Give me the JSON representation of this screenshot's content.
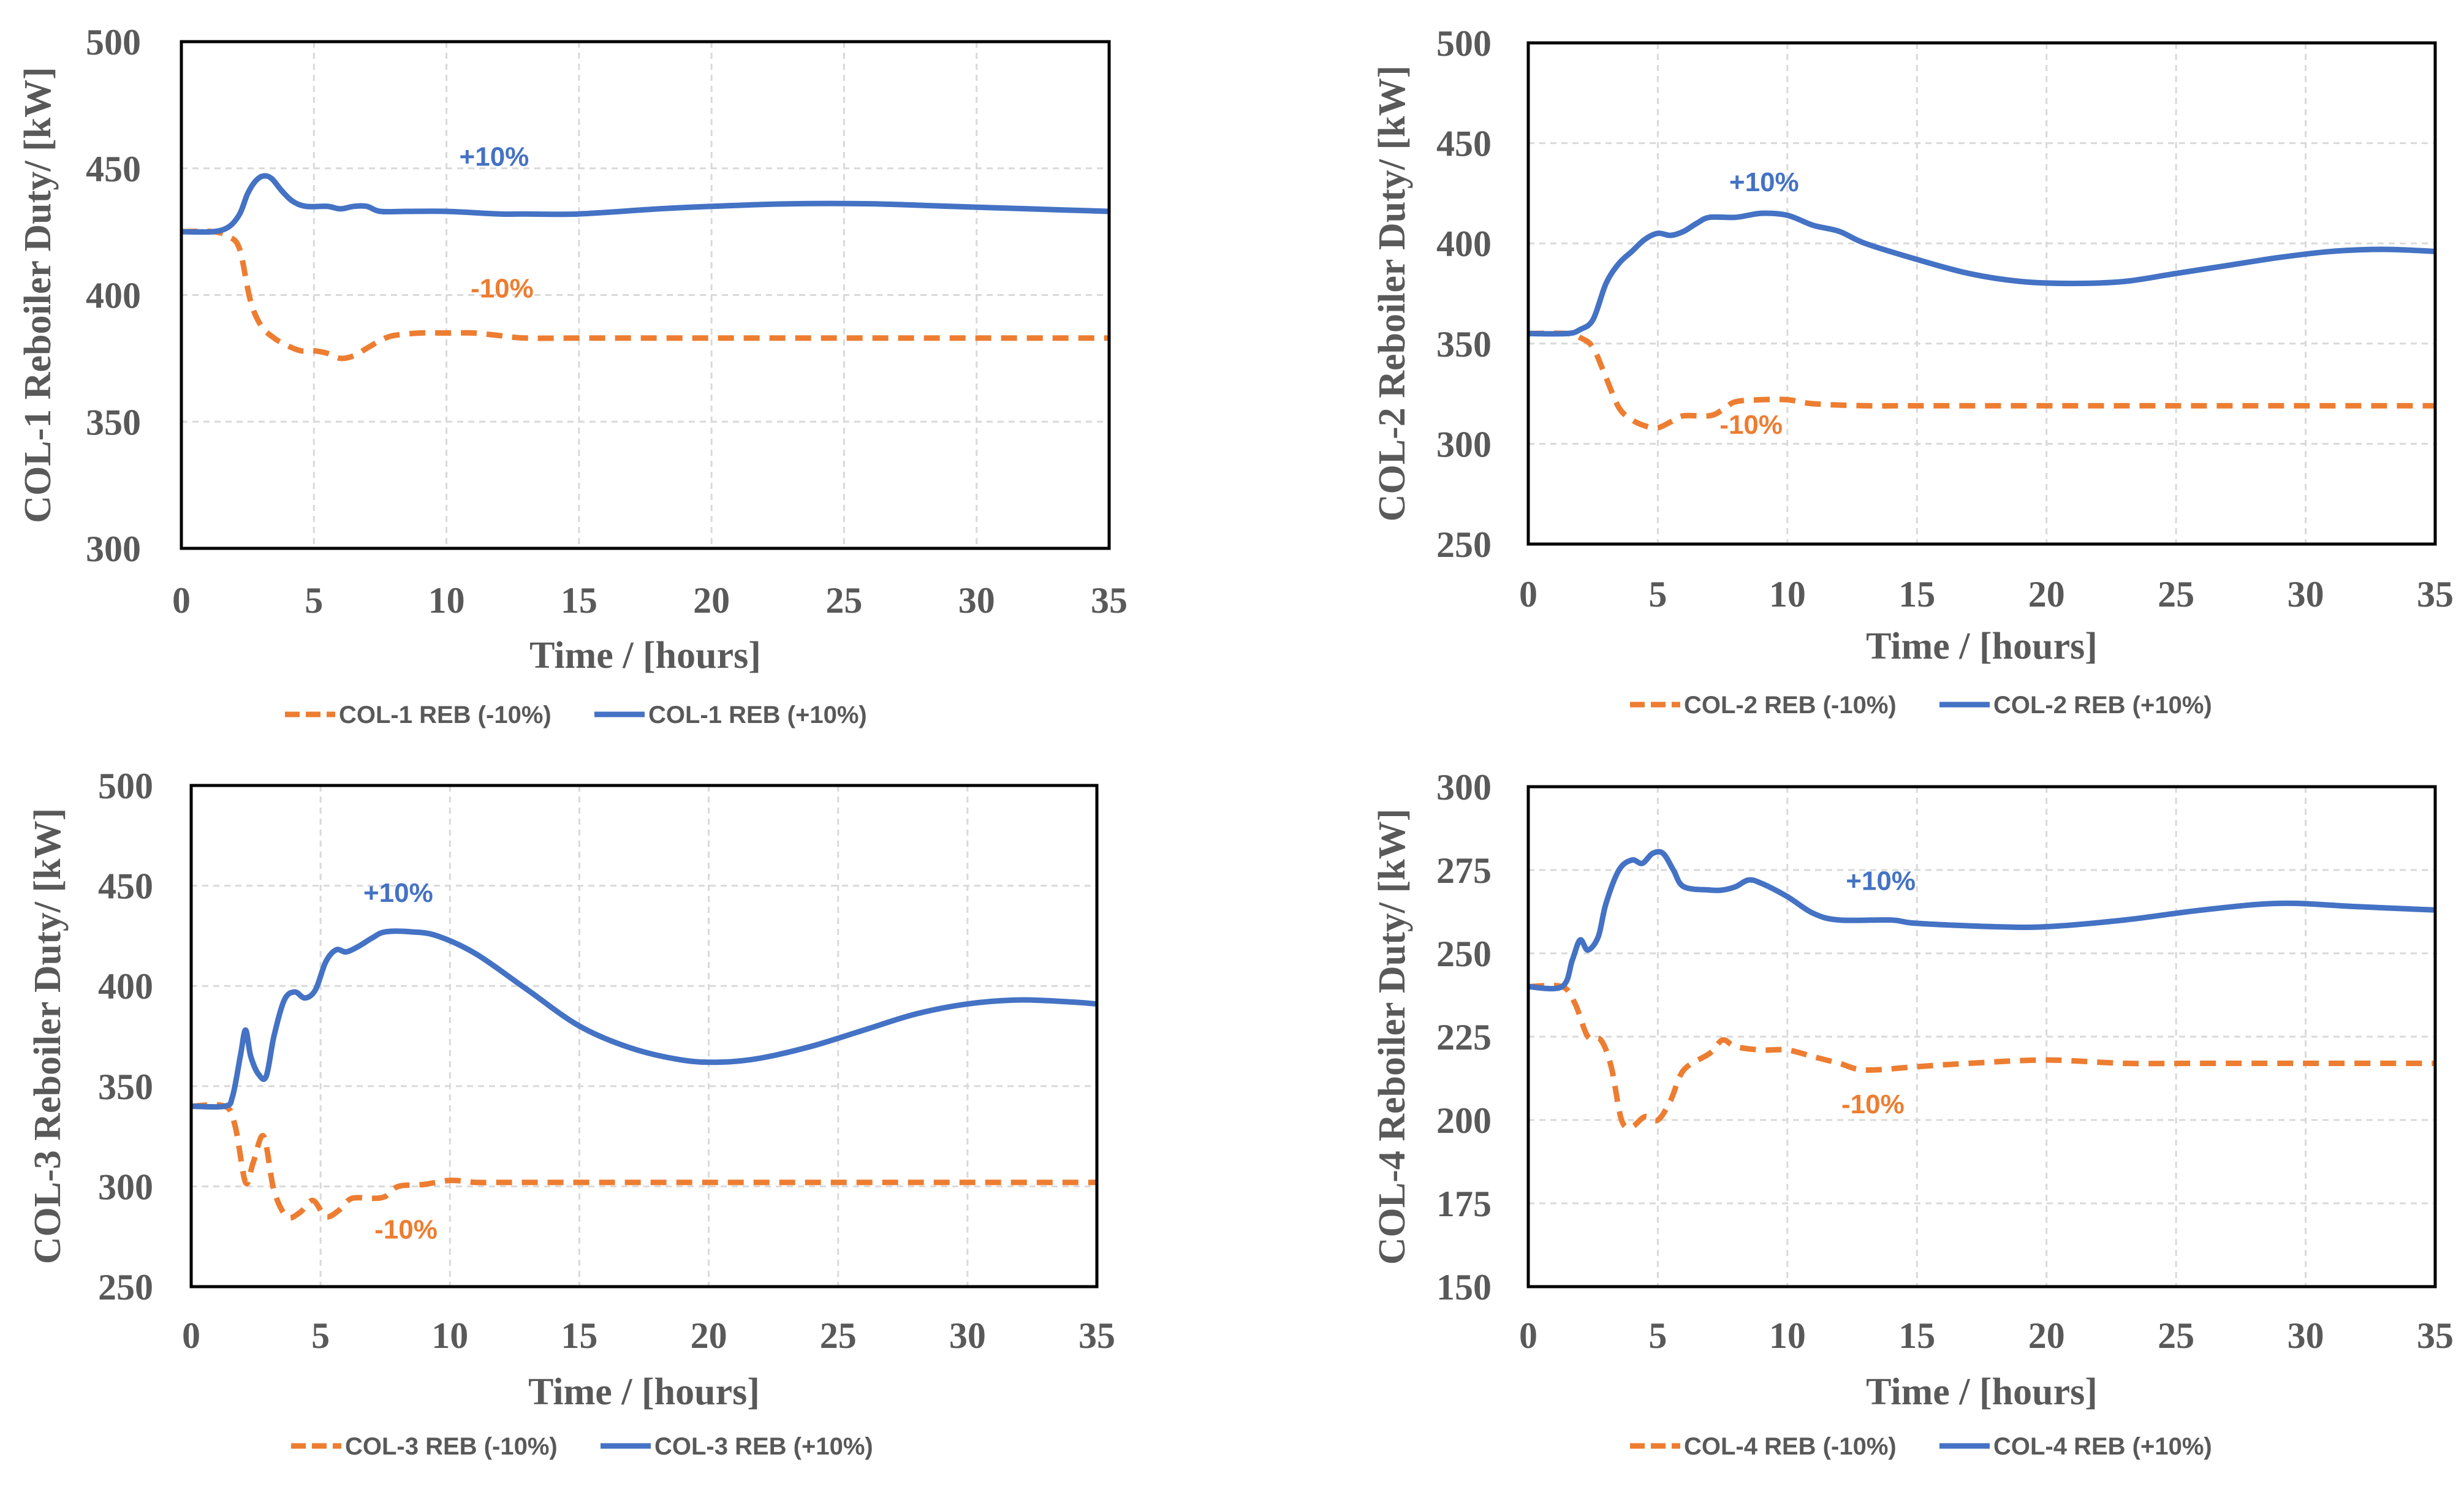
{
  "colors": {
    "minus": "#ED7D31",
    "plus": "#4472C4",
    "text": "#595959",
    "grid": "#D9D9D9",
    "frame": "#000000"
  },
  "chart_data": [
    {
      "type": "line",
      "id": "col1",
      "xlabel": "Time / [hours]",
      "ylabel": "COL-1 Reboiler Duty/ [kW]",
      "xlim": [
        0,
        35
      ],
      "ylim": [
        300,
        500
      ],
      "xticks": [
        0,
        5,
        10,
        15,
        20,
        25,
        30,
        35
      ],
      "yticks": [
        300,
        350,
        400,
        450,
        500
      ],
      "grid": true,
      "legend_position": "bottom",
      "series": [
        {
          "name": "COL-1 REB (-10%)",
          "style": "dashed",
          "color": "#ED7D31",
          "points": [
            [
              0,
              425
            ],
            [
              1.2,
              425
            ],
            [
              1.8,
              423
            ],
            [
              2.2,
              418
            ],
            [
              2.6,
              398
            ],
            [
              3,
              388
            ],
            [
              3.5,
              383
            ],
            [
              4,
              380
            ],
            [
              4.5,
              378
            ],
            [
              5,
              378
            ],
            [
              5.5,
              377
            ],
            [
              6,
              375
            ],
            [
              6.5,
              376
            ],
            [
              7,
              379
            ],
            [
              7.5,
              382
            ],
            [
              8,
              384
            ],
            [
              9,
              385
            ],
            [
              10,
              385
            ],
            [
              11,
              385
            ],
            [
              12,
              384
            ],
            [
              13,
              383
            ],
            [
              15,
              383
            ],
            [
              20,
              383
            ],
            [
              25,
              383
            ],
            [
              30,
              383
            ],
            [
              35,
              383
            ]
          ]
        },
        {
          "name": "COL-1 REB (+10%)",
          "style": "solid",
          "color": "#4472C4",
          "points": [
            [
              0,
              425
            ],
            [
              1.2,
              425
            ],
            [
              1.8,
              427
            ],
            [
              2.2,
              432
            ],
            [
              2.5,
              440
            ],
            [
              2.8,
              445
            ],
            [
              3.1,
              447
            ],
            [
              3.4,
              446
            ],
            [
              3.8,
              441
            ],
            [
              4.2,
              437
            ],
            [
              4.7,
              435
            ],
            [
              5.5,
              435
            ],
            [
              6,
              434
            ],
            [
              6.5,
              435
            ],
            [
              7,
              435
            ],
            [
              7.5,
              433
            ],
            [
              8.5,
              433
            ],
            [
              10,
              433
            ],
            [
              12,
              432
            ],
            [
              13,
              432
            ],
            [
              15,
              432
            ],
            [
              18,
              434
            ],
            [
              20,
              435
            ],
            [
              23,
              436
            ],
            [
              26,
              436
            ],
            [
              29,
              435
            ],
            [
              32,
              434
            ],
            [
              35,
              433
            ]
          ]
        }
      ],
      "annotations": [
        {
          "text": "+10%",
          "x": 11.8,
          "y": 451,
          "color": "#4472C4"
        },
        {
          "text": "-10%",
          "x": 12.1,
          "y": 399,
          "color": "#ED7D31"
        }
      ]
    },
    {
      "type": "line",
      "id": "col2",
      "xlabel": "Time / [hours]",
      "ylabel": "COL-2 Reboiler Duty/ [kW]",
      "xlim": [
        0,
        35
      ],
      "ylim": [
        250,
        500
      ],
      "xticks": [
        0,
        5,
        10,
        15,
        20,
        25,
        30,
        35
      ],
      "yticks": [
        250,
        300,
        350,
        400,
        450,
        500
      ],
      "grid": true,
      "legend_position": "bottom",
      "series": [
        {
          "name": "COL-2 REB (-10%)",
          "style": "dashed",
          "color": "#ED7D31",
          "points": [
            [
              0,
              355
            ],
            [
              1.5,
              355
            ],
            [
              2,
              353
            ],
            [
              2.5,
              348
            ],
            [
              3,
              333
            ],
            [
              3.5,
              318
            ],
            [
              4,
              312
            ],
            [
              4.5,
              309
            ],
            [
              5,
              308
            ],
            [
              5.5,
              311
            ],
            [
              6,
              314
            ],
            [
              7,
              314
            ],
            [
              7.5,
              317
            ],
            [
              8,
              321
            ],
            [
              9,
              322
            ],
            [
              10,
              322
            ],
            [
              11,
              320
            ],
            [
              13,
              319
            ],
            [
              15,
              319
            ],
            [
              20,
              319
            ],
            [
              25,
              319
            ],
            [
              30,
              319
            ],
            [
              35,
              319
            ]
          ]
        },
        {
          "name": "COL-2 REB (+10%)",
          "style": "solid",
          "color": "#4472C4",
          "points": [
            [
              0,
              355
            ],
            [
              1.5,
              355
            ],
            [
              2,
              357
            ],
            [
              2.5,
              362
            ],
            [
              3,
              380
            ],
            [
              3.5,
              390
            ],
            [
              4,
              396
            ],
            [
              4.5,
              402
            ],
            [
              5,
              405
            ],
            [
              5.5,
              404
            ],
            [
              6,
              406
            ],
            [
              6.5,
              410
            ],
            [
              7,
              413
            ],
            [
              8,
              413
            ],
            [
              9,
              415
            ],
            [
              10,
              414
            ],
            [
              11,
              409
            ],
            [
              12,
              406
            ],
            [
              13,
              400
            ],
            [
              15,
              392
            ],
            [
              17,
              385
            ],
            [
              19,
              381
            ],
            [
              21,
              380
            ],
            [
              23,
              381
            ],
            [
              25,
              385
            ],
            [
              27,
              389
            ],
            [
              29,
              393
            ],
            [
              31,
              396
            ],
            [
              33,
              397
            ],
            [
              35,
              396
            ]
          ]
        }
      ],
      "annotations": [
        {
          "text": "+10%",
          "x": 9.1,
          "y": 426,
          "color": "#4472C4"
        },
        {
          "text": "-10%",
          "x": 8.6,
          "y": 305,
          "color": "#ED7D31"
        }
      ]
    },
    {
      "type": "line",
      "id": "col3",
      "xlabel": "Time / [hours]",
      "ylabel": "COL-3 Reboiler Duty/ [kW]",
      "xlim": [
        0,
        35
      ],
      "ylim": [
        250,
        500
      ],
      "xticks": [
        0,
        5,
        10,
        15,
        20,
        25,
        30,
        35
      ],
      "yticks": [
        250,
        300,
        350,
        400,
        450,
        500
      ],
      "grid": true,
      "legend_position": "bottom",
      "series": [
        {
          "name": "COL-3 REB (-10%)",
          "style": "dashed",
          "color": "#ED7D31",
          "points": [
            [
              0,
              340
            ],
            [
              1.3,
              340
            ],
            [
              1.7,
              330
            ],
            [
              2.1,
              302
            ],
            [
              2.4,
              312
            ],
            [
              2.8,
              325
            ],
            [
              3.2,
              298
            ],
            [
              3.7,
              285
            ],
            [
              4.2,
              287
            ],
            [
              4.7,
              293
            ],
            [
              5.2,
              285
            ],
            [
              5.7,
              288
            ],
            [
              6.2,
              294
            ],
            [
              7,
              294
            ],
            [
              7.5,
              295
            ],
            [
              8,
              300
            ],
            [
              9,
              301
            ],
            [
              10,
              303
            ],
            [
              11,
              302
            ],
            [
              12,
              302
            ],
            [
              15,
              302
            ],
            [
              20,
              302
            ],
            [
              25,
              302
            ],
            [
              30,
              302
            ],
            [
              35,
              302
            ]
          ]
        },
        {
          "name": "COL-3 REB (+10%)",
          "style": "solid",
          "color": "#4472C4",
          "points": [
            [
              0,
              340
            ],
            [
              1.3,
              340
            ],
            [
              1.6,
              345
            ],
            [
              1.9,
              365
            ],
            [
              2.1,
              378
            ],
            [
              2.3,
              365
            ],
            [
              2.6,
              356
            ],
            [
              2.9,
              355
            ],
            [
              3.2,
              375
            ],
            [
              3.6,
              393
            ],
            [
              4,
              397
            ],
            [
              4.4,
              394
            ],
            [
              4.8,
              398
            ],
            [
              5.2,
              412
            ],
            [
              5.6,
              418
            ],
            [
              6,
              417
            ],
            [
              6.5,
              420
            ],
            [
              7,
              424
            ],
            [
              7.5,
              427
            ],
            [
              8.5,
              427
            ],
            [
              9.5,
              425
            ],
            [
              11,
              416
            ],
            [
              13,
              398
            ],
            [
              15,
              380
            ],
            [
              17,
              369
            ],
            [
              19,
              363
            ],
            [
              20.5,
              362
            ],
            [
              22,
              364
            ],
            [
              24,
              370
            ],
            [
              26,
              378
            ],
            [
              28,
              386
            ],
            [
              30,
              391
            ],
            [
              32,
              393
            ],
            [
              34,
              392
            ],
            [
              35,
              391
            ]
          ]
        }
      ],
      "annotations": [
        {
          "text": "+10%",
          "x": 8.0,
          "y": 442,
          "color": "#4472C4"
        },
        {
          "text": "-10%",
          "x": 8.3,
          "y": 274,
          "color": "#ED7D31"
        }
      ]
    },
    {
      "type": "line",
      "id": "col4",
      "xlabel": "Time / [hours]",
      "ylabel": "COL-4 Reboiler Duty/ [kW]",
      "xlim": [
        0,
        35
      ],
      "ylim": [
        150,
        300
      ],
      "xticks": [
        0,
        5,
        10,
        15,
        20,
        25,
        30,
        35
      ],
      "yticks": [
        150,
        175,
        200,
        225,
        250,
        275,
        300
      ],
      "grid": true,
      "legend_position": "bottom",
      "series": [
        {
          "name": "COL-4 REB (-10%)",
          "style": "dashed",
          "color": "#ED7D31",
          "points": [
            [
              0,
              240
            ],
            [
              1.3,
              240
            ],
            [
              1.8,
              235
            ],
            [
              2.3,
              225
            ],
            [
              2.8,
              224
            ],
            [
              3.2,
              216
            ],
            [
              3.6,
              200
            ],
            [
              4,
              198
            ],
            [
              4.5,
              201
            ],
            [
              5,
              200
            ],
            [
              5.5,
              206
            ],
            [
              6,
              215
            ],
            [
              7,
              220
            ],
            [
              7.5,
              224
            ],
            [
              8,
              222
            ],
            [
              9,
              221
            ],
            [
              10,
              221
            ],
            [
              11,
              219
            ],
            [
              12,
              217
            ],
            [
              13,
              215
            ],
            [
              15,
              216
            ],
            [
              17,
              217
            ],
            [
              20,
              218
            ],
            [
              23,
              217
            ],
            [
              26,
              217
            ],
            [
              30,
              217
            ],
            [
              35,
              217
            ]
          ]
        },
        {
          "name": "COL-4 REB (+10%)",
          "style": "solid",
          "color": "#4472C4",
          "points": [
            [
              0,
              240
            ],
            [
              1.3,
              240
            ],
            [
              1.7,
              248
            ],
            [
              2,
              254
            ],
            [
              2.3,
              251
            ],
            [
              2.7,
              255
            ],
            [
              3,
              265
            ],
            [
              3.5,
              275
            ],
            [
              4,
              278
            ],
            [
              4.4,
              277
            ],
            [
              4.8,
              280
            ],
            [
              5.2,
              280
            ],
            [
              5.6,
              275
            ],
            [
              6,
              270
            ],
            [
              7,
              269
            ],
            [
              7.5,
              269
            ],
            [
              8,
              270
            ],
            [
              8.5,
              272
            ],
            [
              9,
              271
            ],
            [
              10,
              267
            ],
            [
              11,
              262
            ],
            [
              12,
              260
            ],
            [
              14,
              260
            ],
            [
              15,
              259
            ],
            [
              18,
              258
            ],
            [
              20,
              258
            ],
            [
              23,
              260
            ],
            [
              26,
              263
            ],
            [
              29,
              265
            ],
            [
              32,
              264
            ],
            [
              35,
              263
            ]
          ]
        }
      ],
      "annotations": [
        {
          "text": "+10%",
          "x": 13.6,
          "y": 269,
          "color": "#4472C4"
        },
        {
          "text": "-10%",
          "x": 13.3,
          "y": 202,
          "color": "#ED7D31"
        }
      ]
    }
  ]
}
